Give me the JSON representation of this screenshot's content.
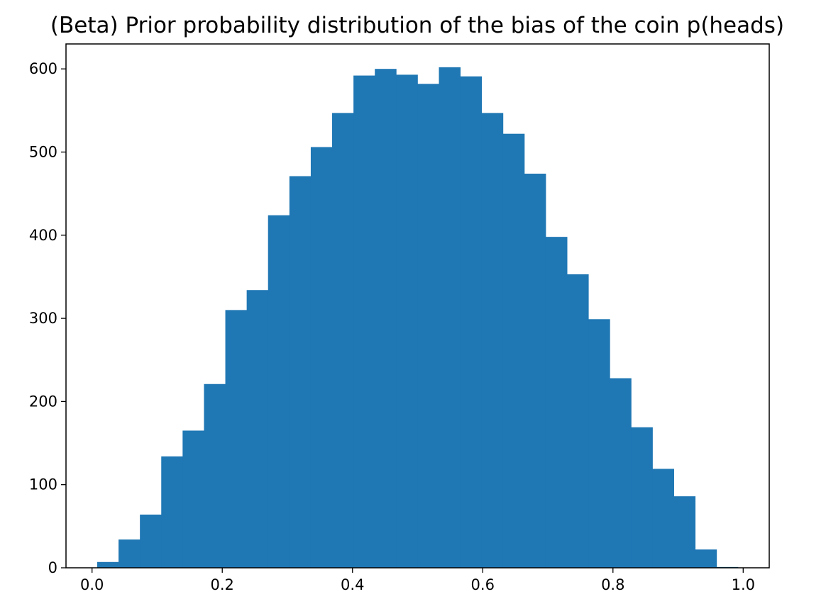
{
  "chart_data": {
    "type": "bar",
    "title": "(Beta) Prior probability distribution of the bias of the coin p(heads)",
    "xlabel": "",
    "ylabel": "",
    "xlim": [
      -0.04,
      1.04
    ],
    "ylim": [
      0,
      630
    ],
    "x_ticks": [
      "0.0",
      "0.2",
      "0.4",
      "0.6",
      "0.8",
      "1.0"
    ],
    "x_tick_values": [
      0.0,
      0.2,
      0.4,
      0.6,
      0.8,
      1.0
    ],
    "y_ticks": [
      "0",
      "100",
      "200",
      "300",
      "400",
      "500",
      "600"
    ],
    "y_tick_values": [
      0,
      100,
      200,
      300,
      400,
      500,
      600
    ],
    "bin_edges": [
      0.0079,
      0.0407,
      0.0735,
      0.1063,
      0.1391,
      0.1719,
      0.2047,
      0.2375,
      0.2703,
      0.3031,
      0.3359,
      0.3687,
      0.4015,
      0.4343,
      0.4671,
      0.4999,
      0.5327,
      0.5655,
      0.5983,
      0.6311,
      0.6639,
      0.6967,
      0.7295,
      0.7623,
      0.7951,
      0.8279,
      0.8607,
      0.8935,
      0.9263,
      0.9591,
      0.9919
    ],
    "values": [
      7,
      34,
      64,
      134,
      165,
      221,
      310,
      334,
      424,
      471,
      506,
      547,
      592,
      600,
      593,
      582,
      602,
      591,
      547,
      522,
      474,
      398,
      353,
      299,
      228,
      169,
      119,
      86,
      22,
      1
    ],
    "bar_color": "#1f77b4",
    "grid": false,
    "legend": null
  }
}
